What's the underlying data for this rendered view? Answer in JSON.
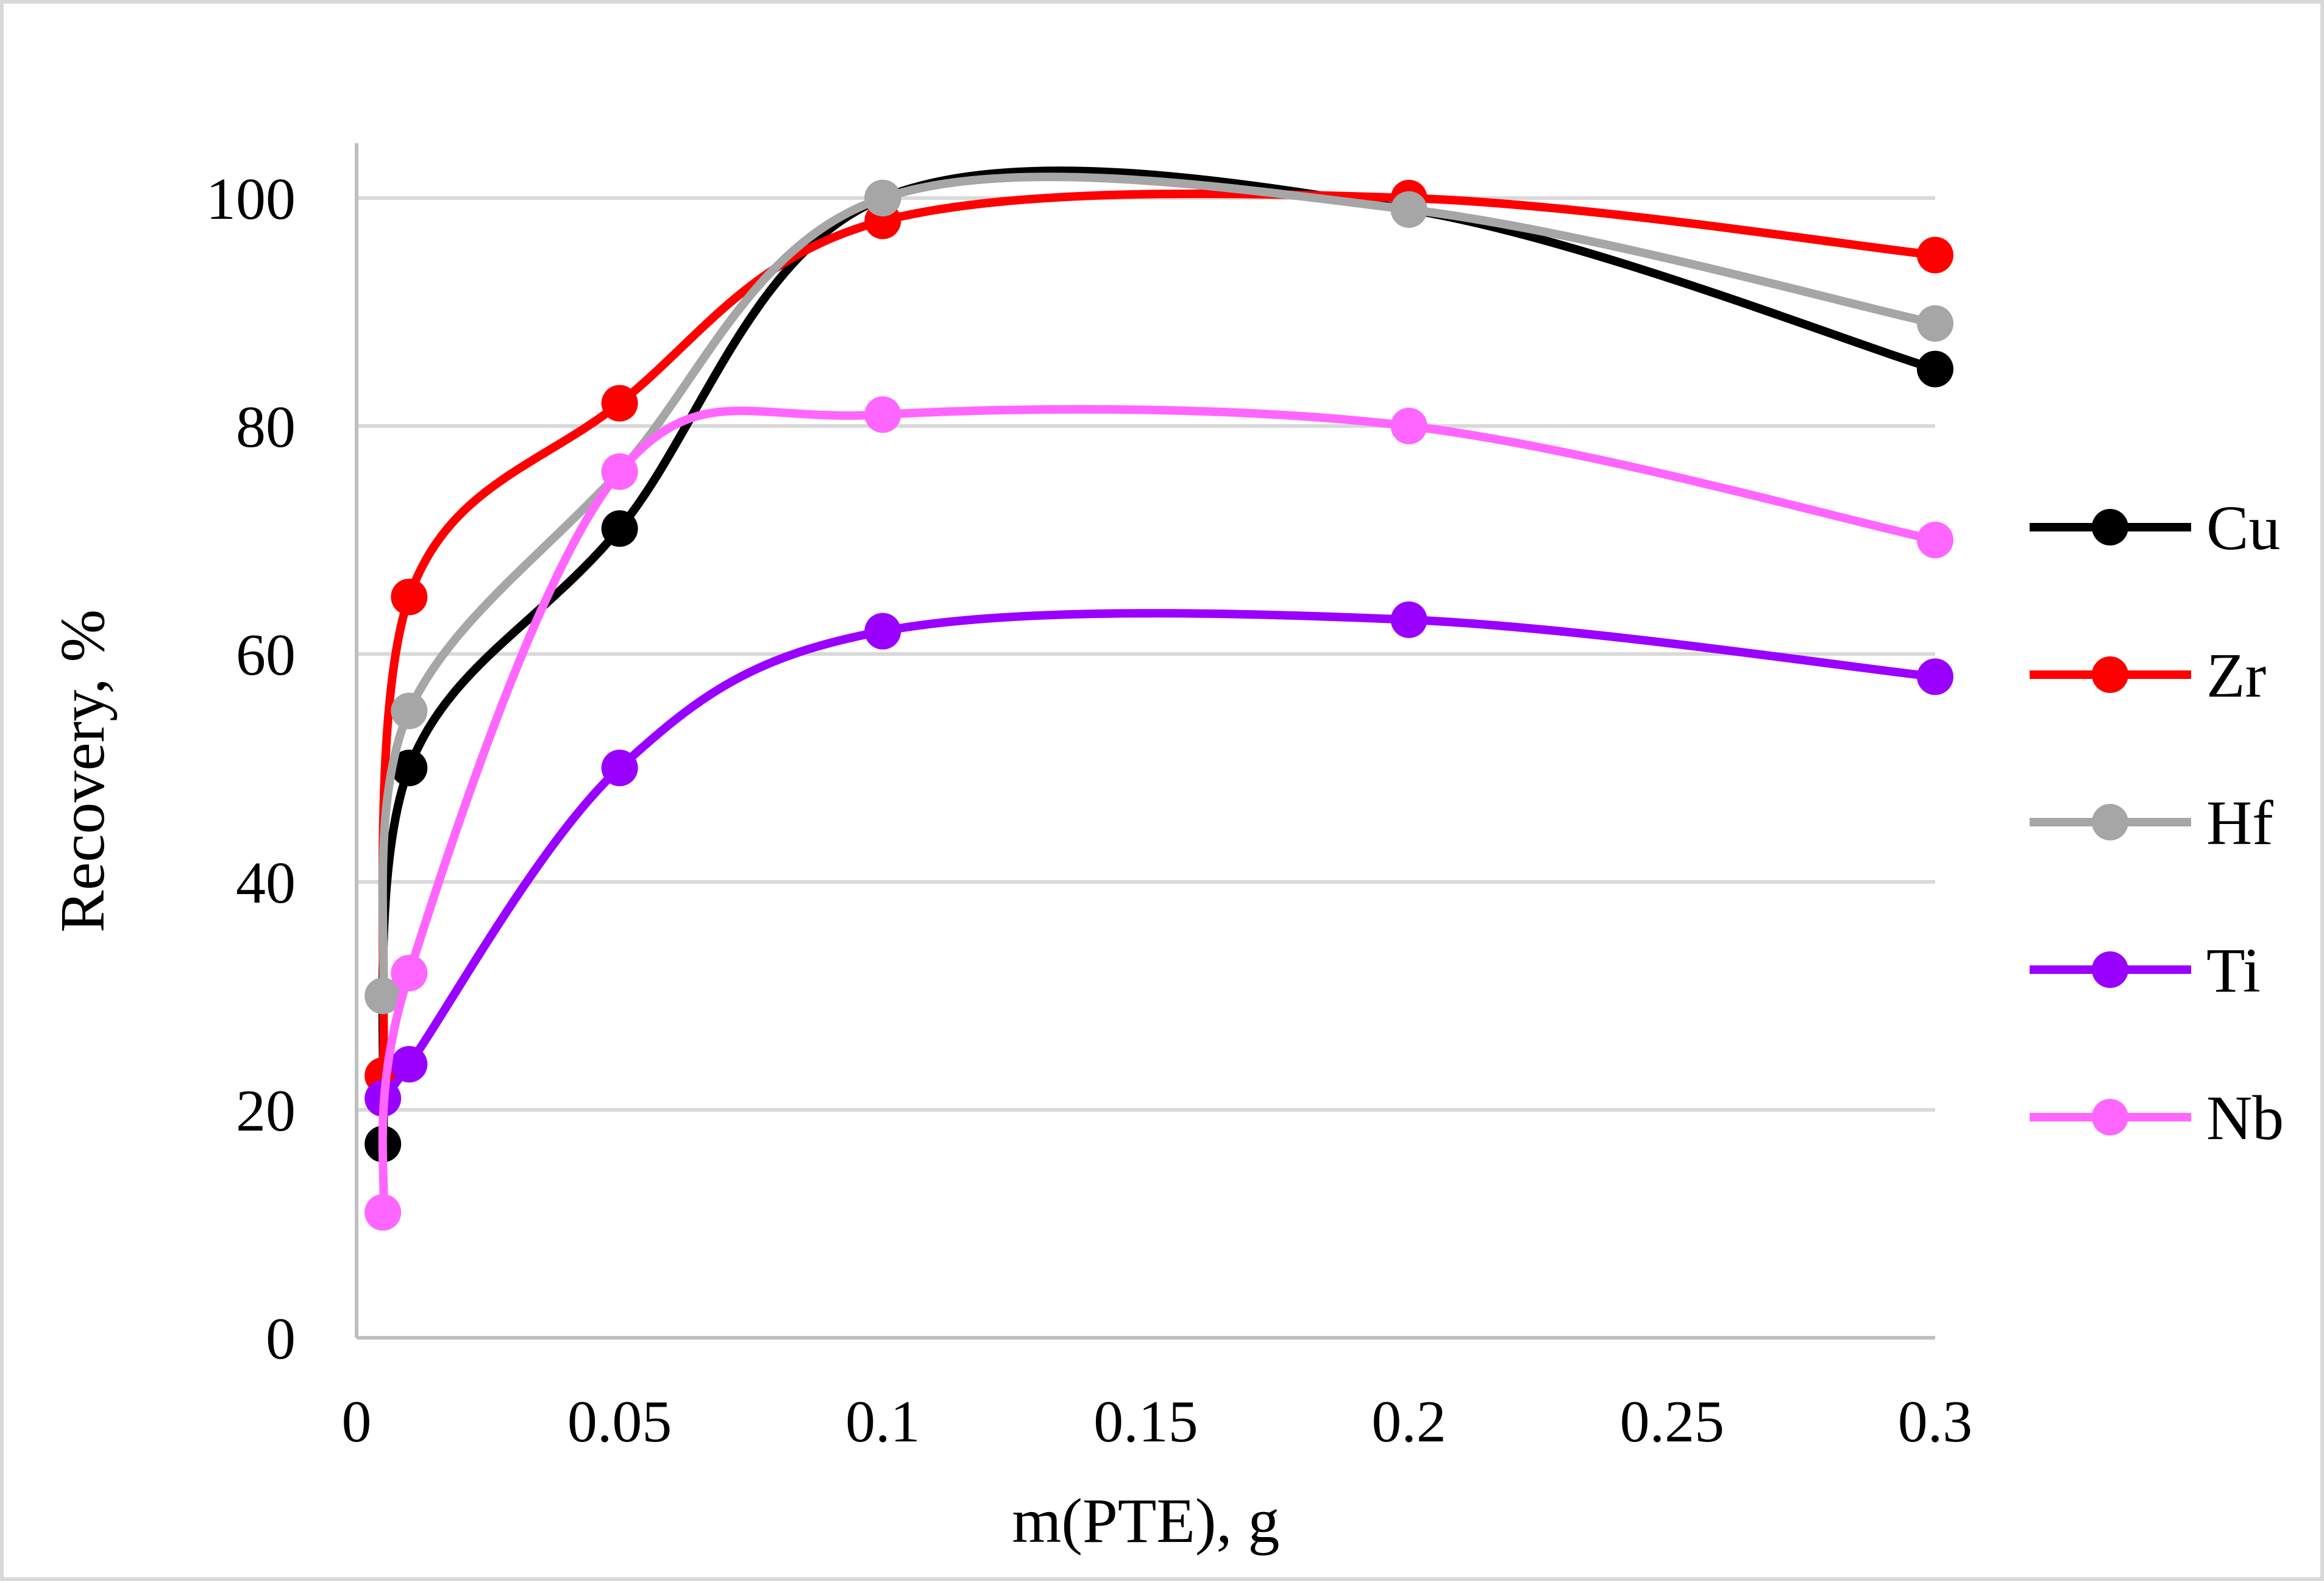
{
  "chart_data": {
    "type": "line",
    "title": "",
    "xlabel": "m(PTE), g",
    "ylabel": "Recovery, %",
    "xlim": [
      0,
      0.3
    ],
    "ylim": [
      0,
      105
    ],
    "x_ticks": [
      0,
      0.05,
      0.1,
      0.15,
      0.2,
      0.25,
      0.3
    ],
    "x_tick_labels": [
      "0",
      "0.05",
      "0.1",
      "0.15",
      "0.2",
      "0.25",
      "0.3"
    ],
    "y_ticks": [
      0,
      20,
      40,
      60,
      80,
      100
    ],
    "y_tick_labels": [
      "0",
      "20",
      "40",
      "60",
      "80",
      "100"
    ],
    "grid": "horizontal",
    "legend_position": "right",
    "smooth": true,
    "x": [
      0.005,
      0.01,
      0.05,
      0.1,
      0.2,
      0.3
    ],
    "series": [
      {
        "name": "Cu",
        "color": "#000000",
        "values": [
          17,
          50,
          71,
          100,
          99,
          85
        ]
      },
      {
        "name": "Zr",
        "color": "#ff0000",
        "values": [
          23,
          65,
          82,
          98,
          100,
          95
        ]
      },
      {
        "name": "Hf",
        "color": "#a6a6a6",
        "values": [
          30,
          55,
          76,
          100,
          99,
          89
        ]
      },
      {
        "name": "Ti",
        "color": "#9900ff",
        "values": [
          21,
          24,
          50,
          62,
          63,
          58
        ]
      },
      {
        "name": "Nb",
        "color": "#ff66ff",
        "values": [
          11,
          32,
          76,
          81,
          80,
          70
        ]
      }
    ]
  }
}
